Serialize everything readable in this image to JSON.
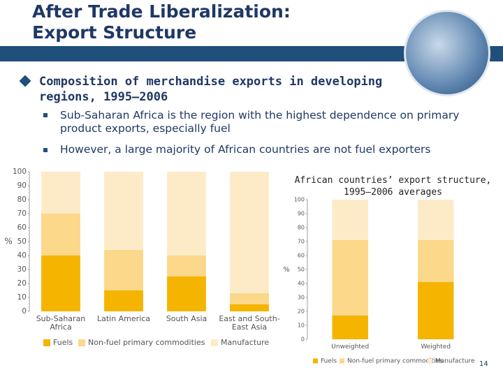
{
  "slide": {
    "title": "After Trade Liberalization: Export Structure",
    "bullet": "Composition of merchandise exports in developing regions, 1995–2006",
    "subbullets": [
      "Sub-Saharan Africa is the region with the highest dependence on primary product exports, especially fuel",
      "However, a large majority of African countries are not fuel exporters"
    ],
    "page_number": "14"
  },
  "chart_data": [
    {
      "type": "stacked_bar",
      "categories": [
        "Sub-Saharan Africa",
        "Latin America",
        "South Asia",
        "East and South-East Asia"
      ],
      "series": [
        {
          "name": "Fuels",
          "color": "#f5b400",
          "values": [
            40,
            15,
            25,
            5
          ]
        },
        {
          "name": "Non-fuel primary commodities",
          "color": "#fbd88a",
          "values": [
            30,
            29,
            15,
            8
          ]
        },
        {
          "name": "Manufacture",
          "color": "#fdebc8",
          "values": [
            30,
            56,
            60,
            87
          ]
        }
      ],
      "ylabel": "%",
      "ylim": [
        0,
        100
      ],
      "yticks": [
        0,
        10,
        20,
        30,
        40,
        50,
        60,
        70,
        80,
        90,
        100
      ],
      "legend": "bottom"
    },
    {
      "type": "stacked_bar",
      "title": "African countries’ export structure, 1995–2006 averages",
      "categories": [
        "Unweighted",
        "Weighted"
      ],
      "series": [
        {
          "name": "Fuels",
          "color": "#f5b400",
          "values": [
            17,
            41
          ]
        },
        {
          "name": "Non-fuel primary commodities",
          "color": "#fbd88a",
          "values": [
            54,
            30
          ]
        },
        {
          "name": "Manufacture",
          "color": "#fdebc8",
          "values": [
            29,
            29
          ]
        }
      ],
      "ylabel": "%",
      "ylim": [
        0,
        100
      ],
      "yticks": [
        0,
        10,
        20,
        30,
        40,
        50,
        60,
        70,
        80,
        90,
        100
      ],
      "legend": "bottom"
    }
  ]
}
